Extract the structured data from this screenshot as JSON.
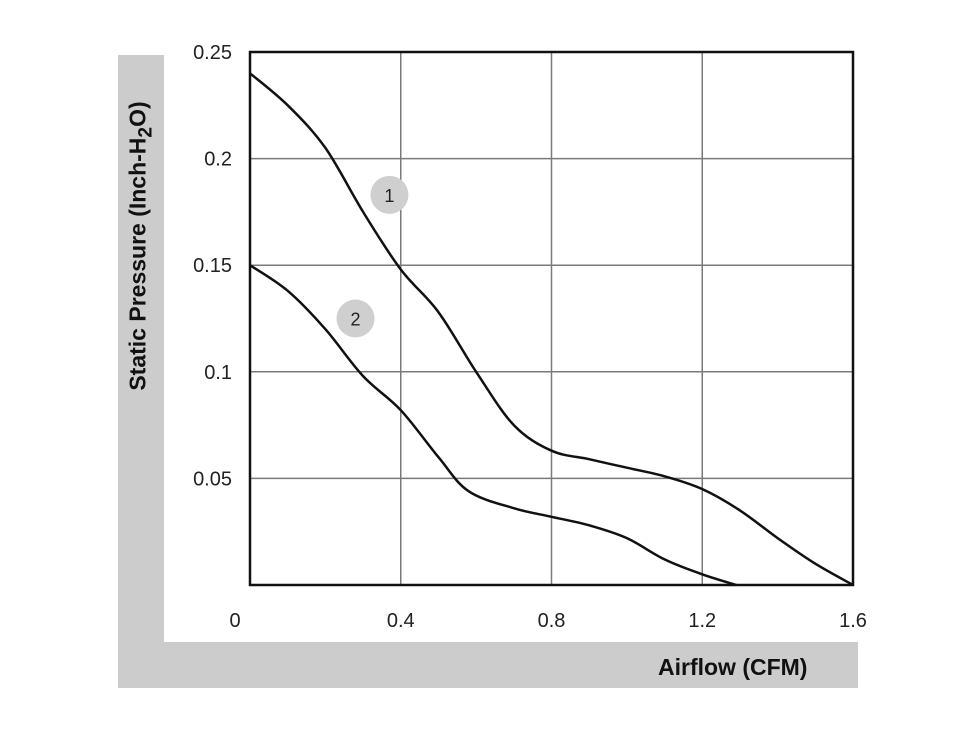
{
  "chart_data": {
    "type": "line",
    "title": "",
    "xlabel": "Airflow (CFM)",
    "ylabel_prefix": "Static Pressure (Inch-H",
    "ylabel_sub": "2",
    "ylabel_suffix": "O)",
    "xlim": [
      0,
      1.6
    ],
    "ylim": [
      0,
      0.25
    ],
    "x_ticks": [
      0,
      0.4,
      0.8,
      1.2,
      1.6
    ],
    "x_tick_labels": [
      "0",
      "0.4",
      "0.8",
      "1.2",
      "1.6"
    ],
    "y_ticks": [
      0.05,
      0.1,
      0.15,
      0.2,
      0.25
    ],
    "y_tick_labels": [
      "0.05",
      "0.1",
      "0.15",
      "0.2",
      "0.25"
    ],
    "grid": true,
    "series": [
      {
        "marker_label": "1",
        "marker_at": [
          0.37,
          0.183
        ],
        "points": [
          [
            0,
            0.24
          ],
          [
            0.1,
            0.225
          ],
          [
            0.2,
            0.205
          ],
          [
            0.3,
            0.175
          ],
          [
            0.4,
            0.148
          ],
          [
            0.5,
            0.128
          ],
          [
            0.6,
            0.1
          ],
          [
            0.7,
            0.075
          ],
          [
            0.8,
            0.063
          ],
          [
            0.9,
            0.059
          ],
          [
            1.0,
            0.055
          ],
          [
            1.1,
            0.051
          ],
          [
            1.2,
            0.045
          ],
          [
            1.3,
            0.035
          ],
          [
            1.4,
            0.022
          ],
          [
            1.5,
            0.01
          ],
          [
            1.6,
            0
          ]
        ]
      },
      {
        "marker_label": "2",
        "marker_at": [
          0.28,
          0.125
        ],
        "points": [
          [
            0,
            0.15
          ],
          [
            0.1,
            0.138
          ],
          [
            0.2,
            0.12
          ],
          [
            0.3,
            0.098
          ],
          [
            0.4,
            0.082
          ],
          [
            0.5,
            0.06
          ],
          [
            0.58,
            0.044
          ],
          [
            0.7,
            0.036
          ],
          [
            0.8,
            0.032
          ],
          [
            0.9,
            0.028
          ],
          [
            1.0,
            0.022
          ],
          [
            1.1,
            0.012
          ],
          [
            1.2,
            0.005
          ],
          [
            1.29,
            0
          ]
        ]
      }
    ]
  }
}
